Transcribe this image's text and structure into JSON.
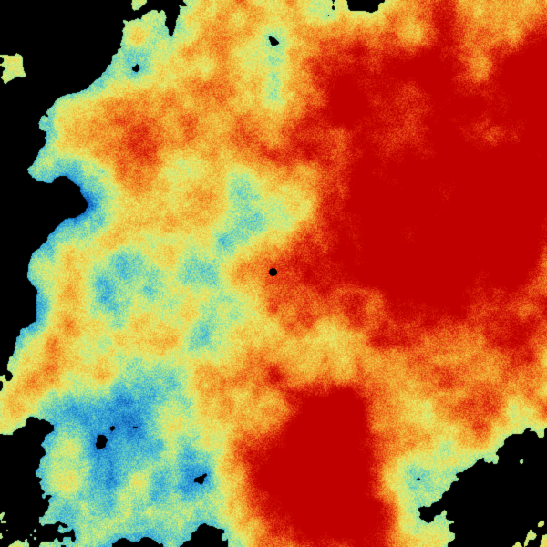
{
  "image": {
    "kind": "weather-radar-sweep",
    "background": "#000000",
    "colormap": [
      "#0a3c9c",
      "#1a78c8",
      "#3cb4dc",
      "#90e0a0",
      "#e8f070",
      "#f0c040",
      "#f08020",
      "#e03010",
      "#c00000"
    ],
    "site_marker_color": "#000000"
  }
}
